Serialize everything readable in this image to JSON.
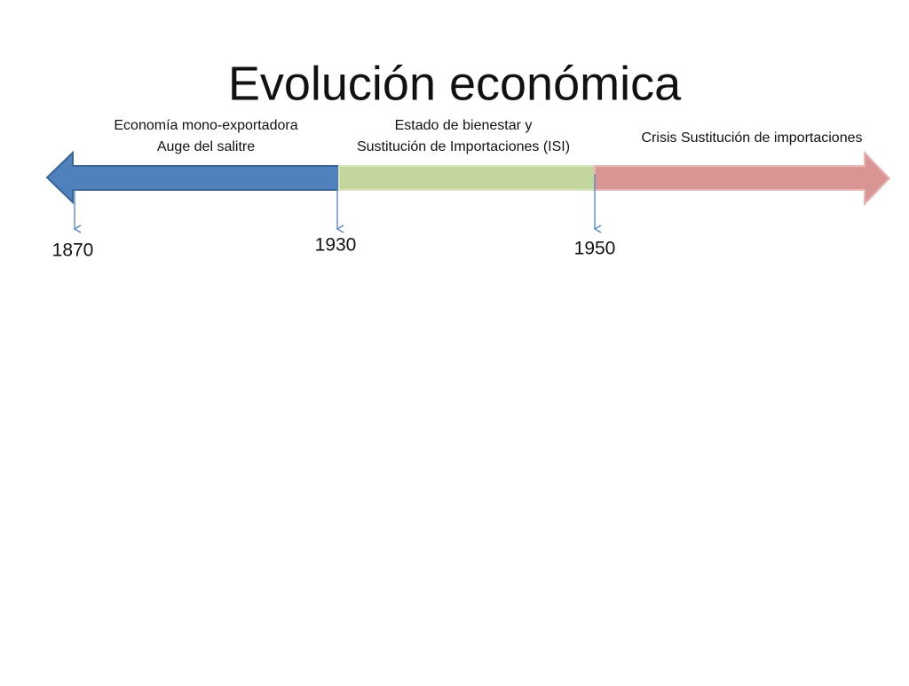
{
  "title": "Evolución económica",
  "periods": [
    {
      "lines": [
        "Economía mono-exportadora",
        "Auge del salitre"
      ]
    },
    {
      "lines": [
        "Estado de bienestar y",
        "Sustitución de Importaciones (ISI)"
      ]
    },
    {
      "lines": [
        "Crisis Sustitución de importaciones"
      ]
    }
  ],
  "markers": [
    {
      "label": "1870"
    },
    {
      "label": "1930"
    },
    {
      "label": "1950"
    }
  ]
}
